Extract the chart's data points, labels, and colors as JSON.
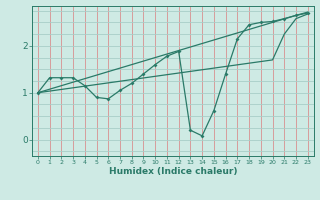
{
  "xlabel": "Humidex (Indice chaleur)",
  "x_values": [
    0,
    1,
    2,
    3,
    4,
    5,
    6,
    7,
    8,
    9,
    10,
    11,
    12,
    13,
    14,
    15,
    16,
    17,
    18,
    19,
    20,
    21,
    22,
    23
  ],
  "line1_y": [
    1.0,
    1.32,
    1.32,
    1.32,
    1.15,
    0.9,
    0.87,
    1.05,
    1.2,
    1.4,
    1.6,
    1.78,
    1.88,
    0.2,
    0.08,
    0.62,
    1.4,
    2.15,
    2.45,
    2.5,
    2.52,
    2.58,
    2.65,
    2.7
  ],
  "line2_y": [
    1.0,
    1.075,
    1.15,
    1.225,
    1.3,
    1.375,
    1.45,
    1.525,
    1.6,
    1.675,
    1.75,
    1.825,
    1.9,
    1.975,
    2.05,
    2.125,
    2.2,
    2.275,
    2.35,
    2.425,
    2.5,
    2.575,
    2.65,
    2.72
  ],
  "line3_y": [
    1.0,
    1.035,
    1.07,
    1.105,
    1.14,
    1.175,
    1.21,
    1.245,
    1.28,
    1.315,
    1.35,
    1.385,
    1.42,
    1.455,
    1.49,
    1.525,
    1.56,
    1.595,
    1.63,
    1.665,
    1.7,
    2.25,
    2.58,
    2.68
  ],
  "line_color": "#2a7a68",
  "bg_color": "#ceeae4",
  "vgrid_color": "#d89090",
  "hgrid_color": "#a8cec8",
  "ylim": [
    -0.35,
    2.85
  ],
  "xlim": [
    -0.5,
    23.5
  ],
  "yticks": [
    0,
    1,
    2
  ],
  "xticks": [
    0,
    1,
    2,
    3,
    4,
    5,
    6,
    7,
    8,
    9,
    10,
    11,
    12,
    13,
    14,
    15,
    16,
    17,
    18,
    19,
    20,
    21,
    22,
    23
  ],
  "hgrid_lines": [
    -0.25,
    0.0,
    0.25,
    0.5,
    0.75,
    1.0,
    1.25,
    1.5,
    1.75,
    2.0,
    2.25,
    2.5,
    2.75
  ]
}
